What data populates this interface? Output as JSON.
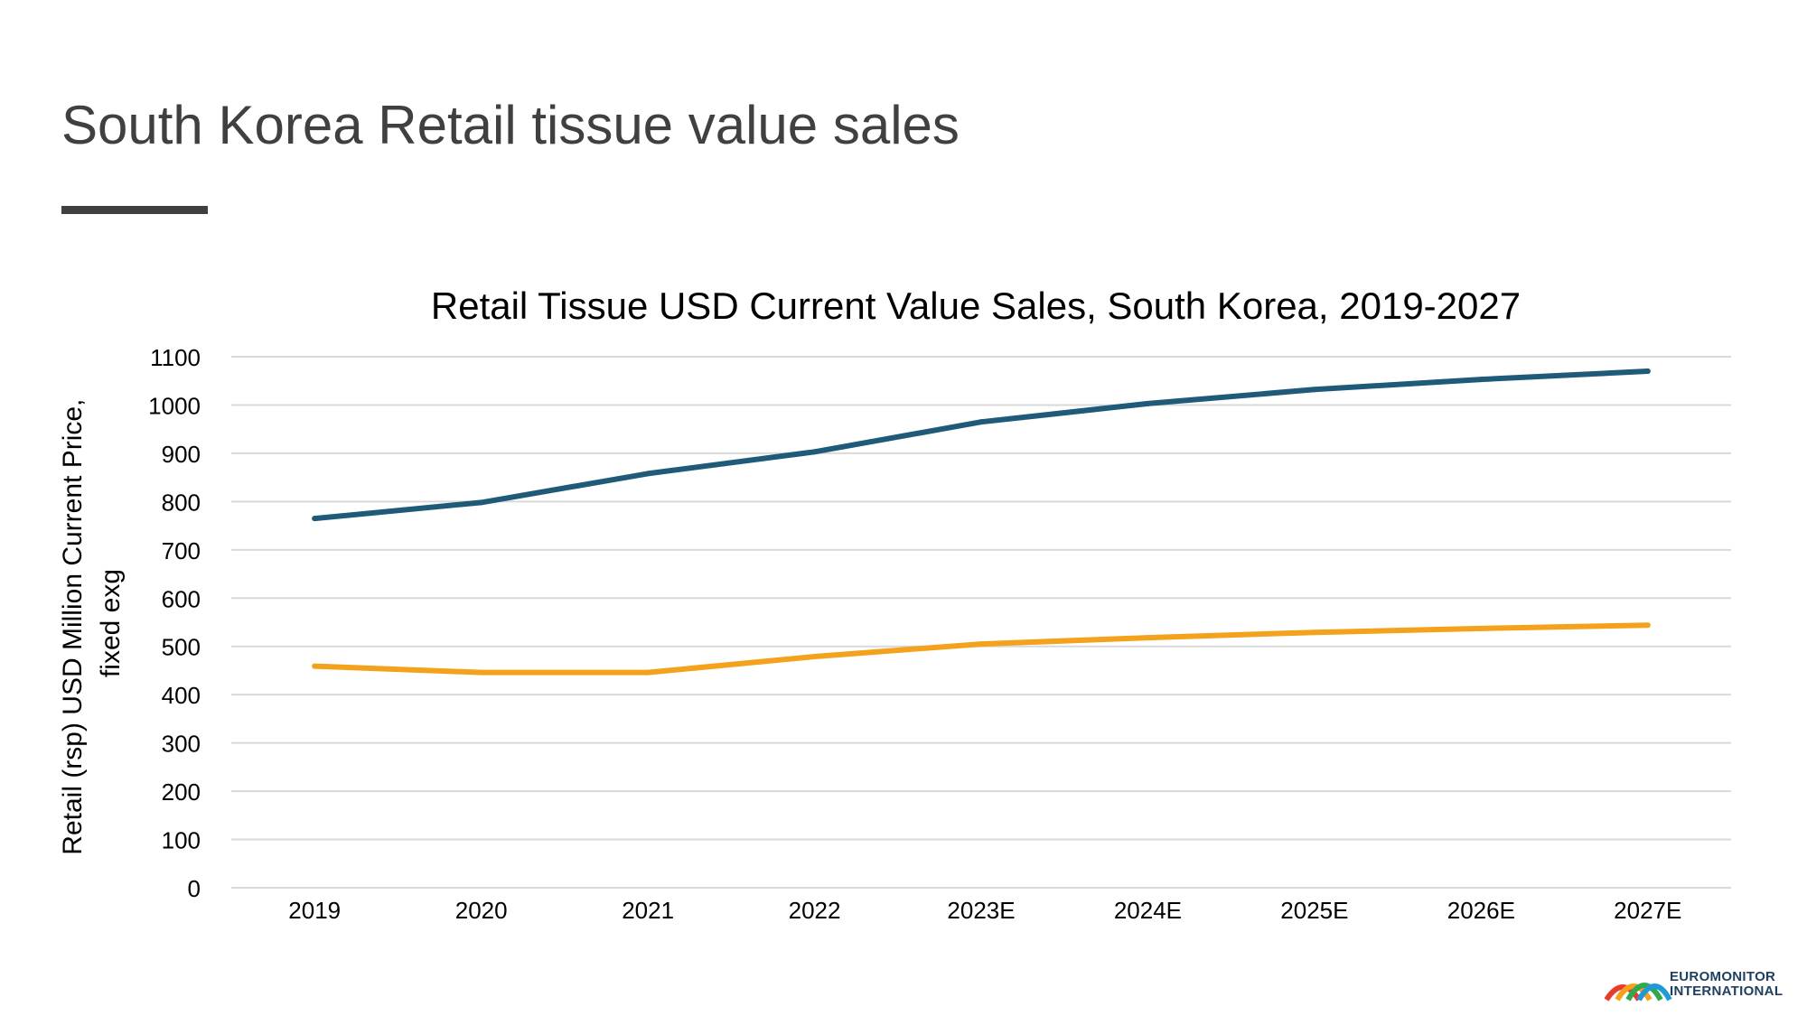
{
  "slide": {
    "title": "South Korea Retail tissue value sales"
  },
  "brand": {
    "line1": "EUROMONITOR",
    "line2": "INTERNATIONAL"
  },
  "colors": {
    "title_text": "#404040",
    "rule": "#404040",
    "gridline": "#d9d9d9",
    "series_1": "#1f5b78",
    "series_2": "#f4a11c"
  },
  "chart_data": {
    "type": "line",
    "title": "Retail Tissue USD Current Value Sales, South Korea, 2019-2027",
    "xlabel": "",
    "ylabel": "Retail (rsp) USD Million Current Price, fixed exg",
    "categories": [
      "2019",
      "2020",
      "2021",
      "2022",
      "2023E",
      "2024E",
      "2025E",
      "2026E",
      "2027E"
    ],
    "ylim": [
      0,
      1100
    ],
    "yticks": [
      0,
      100,
      200,
      300,
      400,
      500,
      600,
      700,
      800,
      900,
      1000,
      1100
    ],
    "grid": true,
    "legend": "none",
    "series": [
      {
        "values": [
          765,
          798,
          858,
          903,
          965,
          1003,
          1032,
          1053,
          1070
        ],
        "color": "#1f5b78"
      },
      {
        "values": [
          459,
          446,
          446,
          479,
          505,
          518,
          529,
          537,
          544
        ],
        "color": "#f4a11c"
      }
    ]
  }
}
